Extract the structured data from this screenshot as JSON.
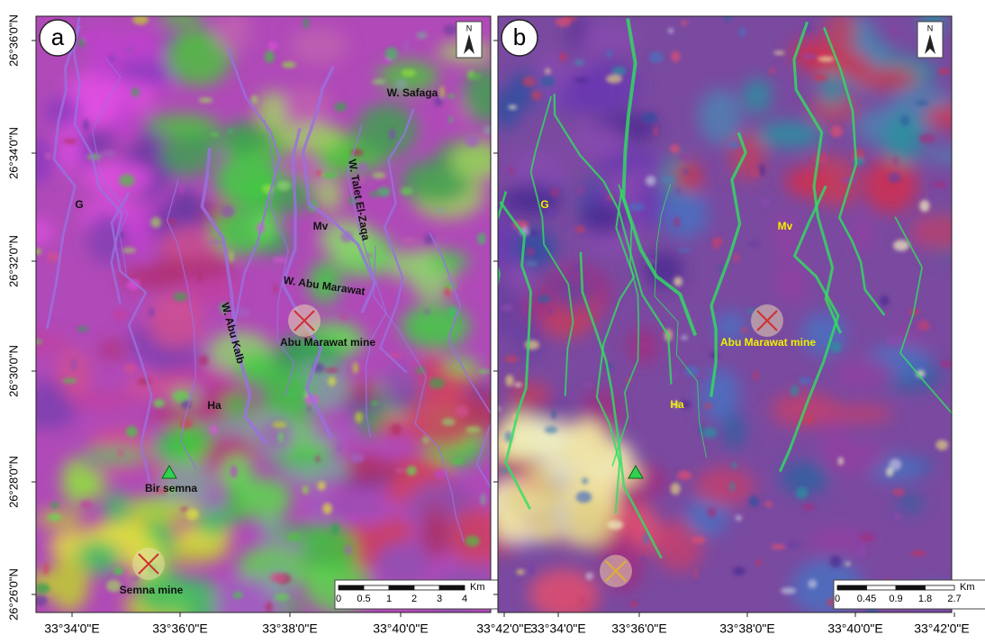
{
  "panels": [
    {
      "letter": "a",
      "north": "N",
      "labels": [
        "W. Safaga",
        "W. Talet El-Zaqa",
        "G",
        "Mv",
        "W. Abu Marawat",
        "W. Abu Kalb",
        "Abu Marawat mine",
        "Ha",
        "Bir semna",
        "Semna mine"
      ],
      "scale": {
        "ticks": [
          "0",
          "0.5",
          "1",
          "2",
          "3",
          "4"
        ],
        "unit": "Km"
      },
      "lon_labels": [
        "33°34'0\"E",
        "33°36'0\"E",
        "33°38'0\"E",
        "33°40'0\"E",
        "33°42'0\"E"
      ]
    },
    {
      "letter": "b",
      "north": "N",
      "labels": [
        "G",
        "Mv",
        "Abu Marawat mine",
        "Ha"
      ],
      "scale": {
        "ticks": [
          "0",
          "0.45",
          "0.9",
          "1.8",
          "2.7"
        ],
        "unit": "Km"
      },
      "lon_labels": [
        "33°34'0\"E",
        "33°36'0\"E",
        "33°38'0\"E",
        "33°40'0\"E",
        "33°42'0\"E"
      ]
    }
  ],
  "lat_labels": [
    "26°36'0\"N",
    "26°34'0\"N",
    "26°32'0\"N",
    "26°30'0\"N",
    "26°28'0\"N",
    "26°26'0\"N"
  ]
}
